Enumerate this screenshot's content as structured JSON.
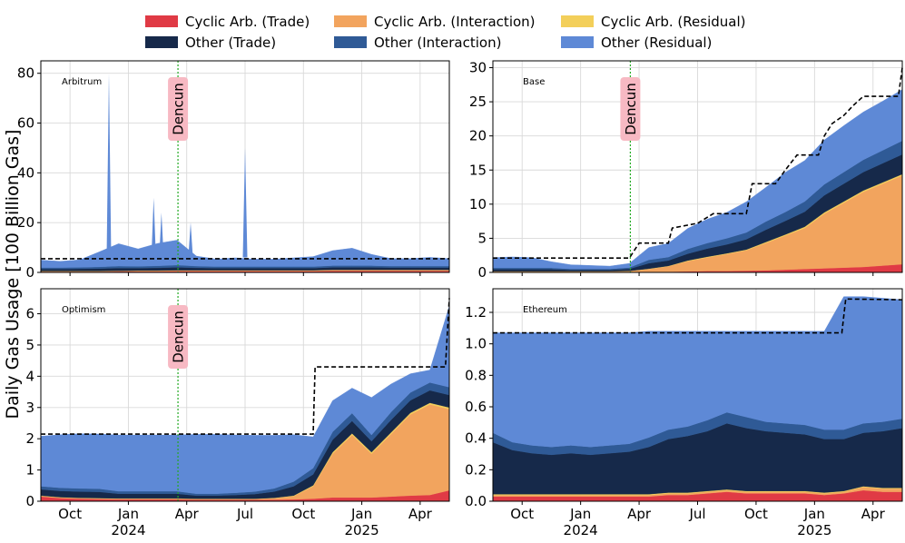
{
  "figure": {
    "ylabel": "Daily Gas Usage [100 Billion Gas]",
    "legend": {
      "placement": "top-center",
      "entries": [
        {
          "label": "Cyclic Arb. (Trade)",
          "color": "#e03a45"
        },
        {
          "label": "Cyclic Arb. (Interaction)",
          "color": "#f2a45e"
        },
        {
          "label": "Cyclic Arb. (Residual)",
          "color": "#f3cf5a"
        },
        {
          "label": "Other (Trade)",
          "color": "#16294a"
        },
        {
          "label": "Other (Interaction)",
          "color": "#2f5a96"
        },
        {
          "label": "Other (Residual)",
          "color": "#5e89d6"
        }
      ]
    },
    "x_tick_labels": [
      "Oct",
      "Jan\n2024",
      "Apr",
      "Jul",
      "Oct",
      "Jan\n2025",
      "Apr"
    ],
    "event_label": "Dencun"
  },
  "chart_data": [
    {
      "type": "area",
      "stacked": true,
      "title": "Arbitrum",
      "x": [
        0,
        1,
        2,
        3,
        4,
        5,
        6,
        7,
        8,
        9,
        10,
        11,
        12,
        13,
        14,
        15,
        16,
        17,
        18,
        19,
        20,
        21
      ],
      "x_dates": [
        "2023-08-15",
        "2023-09-15",
        "2023-10-15",
        "2023-11-15",
        "2023-12-15",
        "2024-01-15",
        "2024-02-15",
        "2024-03-15",
        "2024-04-15",
        "2024-05-15",
        "2024-06-15",
        "2024-07-15",
        "2024-08-15",
        "2024-09-15",
        "2024-10-15",
        "2024-11-15",
        "2024-12-15",
        "2025-01-15",
        "2025-02-15",
        "2025-03-15",
        "2025-04-15",
        "2025-05-15"
      ],
      "ylim": [
        0,
        85
      ],
      "yticks": [
        0,
        20,
        40,
        60,
        80
      ],
      "series": [
        {
          "name": "Cyclic Arb. (Trade)",
          "values": [
            0.3,
            0.3,
            0.3,
            0.3,
            0.4,
            0.4,
            0.4,
            0.5,
            0.5,
            0.5,
            0.5,
            0.5,
            0.5,
            0.5,
            0.5,
            0.6,
            0.6,
            0.6,
            0.6,
            0.6,
            0.6,
            0.6
          ]
        },
        {
          "name": "Cyclic Arb. (Interaction)",
          "values": [
            0.2,
            0.2,
            0.2,
            0.2,
            0.2,
            0.3,
            0.3,
            0.3,
            0.3,
            0.3,
            0.3,
            0.3,
            0.3,
            0.3,
            0.3,
            0.4,
            0.4,
            0.4,
            0.4,
            0.4,
            0.4,
            0.4
          ]
        },
        {
          "name": "Cyclic Arb. (Residual)",
          "values": [
            0.05,
            0.05,
            0.05,
            0.05,
            0.05,
            0.05,
            0.05,
            0.05,
            0.05,
            0.05,
            0.05,
            0.05,
            0.05,
            0.05,
            0.05,
            0.05,
            0.05,
            0.05,
            0.05,
            0.05,
            0.05,
            0.05
          ]
        },
        {
          "name": "Other (Trade)",
          "values": [
            0.8,
            0.8,
            0.9,
            1.0,
            1.1,
            1.0,
            1.1,
            1.2,
            1.0,
            0.9,
            0.9,
            0.9,
            0.9,
            0.9,
            0.9,
            1.0,
            1.0,
            1.0,
            0.9,
            0.9,
            0.9,
            0.9
          ]
        },
        {
          "name": "Other (Interaction)",
          "values": [
            0.6,
            0.6,
            0.6,
            0.7,
            0.8,
            0.7,
            0.8,
            0.9,
            0.7,
            0.6,
            0.6,
            0.6,
            0.6,
            0.6,
            0.6,
            0.7,
            0.7,
            0.7,
            0.6,
            0.6,
            0.6,
            0.6
          ]
        },
        {
          "name": "Other (Residual)",
          "values": [
            3.0,
            2.5,
            3.0,
            6.0,
            9.0,
            7.0,
            9.0,
            10.0,
            4.0,
            3.0,
            3.5,
            3.0,
            3.0,
            3.5,
            4.0,
            6.0,
            7.0,
            4.5,
            3.0,
            3.0,
            3.5,
            3.0
          ]
        }
      ],
      "capacity": [
        [
          0,
          5.5
        ],
        [
          21,
          5.5
        ]
      ],
      "spikes": [
        {
          "x": 3.5,
          "y": 80
        },
        {
          "x": 5.8,
          "y": 30
        },
        {
          "x": 6.2,
          "y": 24
        },
        {
          "x": 7.7,
          "y": 20
        },
        {
          "x": 10.5,
          "y": 50
        }
      ]
    },
    {
      "type": "area",
      "stacked": true,
      "title": "Base",
      "x": [
        0,
        1,
        2,
        3,
        4,
        5,
        6,
        7,
        8,
        9,
        10,
        11,
        12,
        13,
        14,
        15,
        16,
        17,
        18,
        19,
        20,
        21
      ],
      "x_dates": [
        "2023-08-15",
        "2023-09-15",
        "2023-10-15",
        "2023-11-15",
        "2023-12-15",
        "2024-01-15",
        "2024-02-15",
        "2024-03-15",
        "2024-04-15",
        "2024-05-15",
        "2024-06-15",
        "2024-07-15",
        "2024-08-15",
        "2024-09-15",
        "2024-10-15",
        "2024-11-15",
        "2024-12-15",
        "2025-01-15",
        "2025-02-15",
        "2025-03-15",
        "2025-04-15",
        "2025-05-15"
      ],
      "ylim": [
        0,
        31
      ],
      "yticks": [
        0,
        5,
        10,
        15,
        20,
        25,
        30
      ],
      "series": [
        {
          "name": "Cyclic Arb. (Trade)",
          "values": [
            0.05,
            0.05,
            0.05,
            0.05,
            0.05,
            0.05,
            0.05,
            0.05,
            0.1,
            0.1,
            0.15,
            0.2,
            0.2,
            0.25,
            0.3,
            0.4,
            0.5,
            0.6,
            0.7,
            0.8,
            1.0,
            1.2
          ]
        },
        {
          "name": "Cyclic Arb. (Interaction)",
          "values": [
            0.1,
            0.1,
            0.1,
            0.1,
            0.1,
            0.1,
            0.1,
            0.15,
            0.4,
            0.8,
            1.5,
            2.0,
            2.5,
            3.0,
            4.0,
            5.0,
            6.0,
            8.0,
            9.5,
            11.0,
            12.0,
            13.0
          ]
        },
        {
          "name": "Cyclic Arb. (Residual)",
          "values": [
            0.02,
            0.02,
            0.02,
            0.02,
            0.02,
            0.02,
            0.02,
            0.02,
            0.05,
            0.05,
            0.1,
            0.1,
            0.1,
            0.1,
            0.15,
            0.15,
            0.2,
            0.2,
            0.2,
            0.2,
            0.2,
            0.2
          ]
        },
        {
          "name": "Other (Trade)",
          "values": [
            0.3,
            0.3,
            0.3,
            0.3,
            0.2,
            0.2,
            0.2,
            0.3,
            0.8,
            0.8,
            1.0,
            1.2,
            1.3,
            1.5,
            1.8,
            2.0,
            2.2,
            2.5,
            2.6,
            2.7,
            2.8,
            2.9
          ]
        },
        {
          "name": "Other (Interaction)",
          "values": [
            0.2,
            0.2,
            0.2,
            0.2,
            0.15,
            0.15,
            0.15,
            0.2,
            0.5,
            0.5,
            0.7,
            0.8,
            0.9,
            1.0,
            1.2,
            1.3,
            1.5,
            1.6,
            1.7,
            1.8,
            1.9,
            2.0
          ]
        },
        {
          "name": "Other (Residual)",
          "values": [
            1.5,
            1.6,
            1.5,
            0.9,
            0.6,
            0.5,
            0.4,
            0.6,
            1.8,
            2.0,
            3.0,
            3.5,
            3.8,
            4.5,
            5.0,
            5.8,
            6.0,
            6.5,
            6.8,
            7.0,
            7.2,
            7.5
          ]
        }
      ],
      "capacity": [
        [
          0,
          2.1
        ],
        [
          7,
          2.1
        ],
        [
          7.5,
          4.3
        ],
        [
          9,
          4.3
        ],
        [
          9.2,
          6.5
        ],
        [
          10.5,
          7.2
        ],
        [
          11.3,
          8.6
        ],
        [
          13,
          8.6
        ],
        [
          13.3,
          13.0
        ],
        [
          14.5,
          13.0
        ],
        [
          15,
          15.0
        ],
        [
          15.6,
          17.2
        ],
        [
          16.7,
          17.2
        ],
        [
          17,
          20.0
        ],
        [
          17.4,
          21.8
        ],
        [
          18,
          23.0
        ],
        [
          18.5,
          24.5
        ],
        [
          19,
          25.8
        ],
        [
          20.8,
          25.8
        ],
        [
          21,
          30.0
        ]
      ]
    },
    {
      "type": "area",
      "stacked": true,
      "title": "Optimism",
      "x": [
        0,
        1,
        2,
        3,
        4,
        5,
        6,
        7,
        8,
        9,
        10,
        11,
        12,
        13,
        14,
        15,
        16,
        17,
        18,
        19,
        20,
        21
      ],
      "x_dates": [
        "2023-08-15",
        "2023-09-15",
        "2023-10-15",
        "2023-11-15",
        "2023-12-15",
        "2024-01-15",
        "2024-02-15",
        "2024-03-15",
        "2024-04-15",
        "2024-05-15",
        "2024-06-15",
        "2024-07-15",
        "2024-08-15",
        "2024-09-15",
        "2024-10-15",
        "2024-11-15",
        "2024-12-15",
        "2025-01-15",
        "2025-02-15",
        "2025-03-15",
        "2025-04-15",
        "2025-05-15"
      ],
      "ylim": [
        0,
        6.8
      ],
      "yticks": [
        0,
        1,
        2,
        3,
        4,
        5,
        6
      ],
      "series": [
        {
          "name": "Cyclic Arb. (Trade)",
          "values": [
            0.15,
            0.1,
            0.08,
            0.07,
            0.06,
            0.06,
            0.06,
            0.06,
            0.05,
            0.05,
            0.05,
            0.05,
            0.05,
            0.06,
            0.08,
            0.12,
            0.12,
            0.12,
            0.15,
            0.18,
            0.2,
            0.35
          ]
        },
        {
          "name": "Cyclic Arb. (Interaction)",
          "values": [
            0.02,
            0.02,
            0.02,
            0.02,
            0.02,
            0.02,
            0.02,
            0.02,
            0.02,
            0.02,
            0.02,
            0.02,
            0.05,
            0.1,
            0.4,
            1.4,
            2.0,
            1.4,
            2.0,
            2.6,
            2.9,
            2.6
          ]
        },
        {
          "name": "Cyclic Arb. (Residual)",
          "values": [
            0.01,
            0.01,
            0.01,
            0.01,
            0.01,
            0.01,
            0.01,
            0.01,
            0.01,
            0.01,
            0.01,
            0.01,
            0.01,
            0.02,
            0.03,
            0.05,
            0.05,
            0.05,
            0.05,
            0.05,
            0.05,
            0.05
          ]
        },
        {
          "name": "Other (Trade)",
          "values": [
            0.2,
            0.2,
            0.2,
            0.2,
            0.15,
            0.15,
            0.15,
            0.15,
            0.1,
            0.1,
            0.12,
            0.15,
            0.2,
            0.3,
            0.35,
            0.4,
            0.4,
            0.35,
            0.4,
            0.4,
            0.4,
            0.4
          ]
        },
        {
          "name": "Other (Interaction)",
          "values": [
            0.1,
            0.1,
            0.1,
            0.1,
            0.08,
            0.08,
            0.08,
            0.08,
            0.06,
            0.06,
            0.07,
            0.08,
            0.1,
            0.15,
            0.2,
            0.25,
            0.25,
            0.2,
            0.25,
            0.25,
            0.25,
            0.25
          ]
        },
        {
          "name": "Other (Residual)",
          "values": [
            1.6,
            1.7,
            1.75,
            1.75,
            1.8,
            1.8,
            1.8,
            1.8,
            1.9,
            1.9,
            1.85,
            1.8,
            1.7,
            1.5,
            1.0,
            1.0,
            0.8,
            1.2,
            0.9,
            0.6,
            0.4,
            2.6
          ]
        }
      ],
      "capacity": [
        [
          0,
          2.15
        ],
        [
          14,
          2.15
        ],
        [
          14.1,
          4.3
        ],
        [
          20.8,
          4.3
        ],
        [
          21,
          6.5
        ]
      ]
    },
    {
      "type": "area",
      "stacked": true,
      "title": "Ethereum",
      "x": [
        0,
        1,
        2,
        3,
        4,
        5,
        6,
        7,
        8,
        9,
        10,
        11,
        12,
        13,
        14,
        15,
        16,
        17,
        18,
        19,
        20,
        21
      ],
      "x_dates": [
        "2023-08-15",
        "2023-09-15",
        "2023-10-15",
        "2023-11-15",
        "2023-12-15",
        "2024-01-15",
        "2024-02-15",
        "2024-03-15",
        "2024-04-15",
        "2024-05-15",
        "2024-06-15",
        "2024-07-15",
        "2024-08-15",
        "2024-09-15",
        "2024-10-15",
        "2024-11-15",
        "2024-12-15",
        "2025-01-15",
        "2025-02-15",
        "2025-03-15",
        "2025-04-15",
        "2025-05-15"
      ],
      "ylim": [
        0,
        1.35
      ],
      "yticks": [
        0.0,
        0.2,
        0.4,
        0.6,
        0.8,
        1.0,
        1.2
      ],
      "series": [
        {
          "name": "Cyclic Arb. (Trade)",
          "values": [
            0.03,
            0.03,
            0.03,
            0.03,
            0.03,
            0.03,
            0.03,
            0.03,
            0.03,
            0.04,
            0.04,
            0.05,
            0.06,
            0.05,
            0.05,
            0.05,
            0.05,
            0.04,
            0.05,
            0.07,
            0.06,
            0.06
          ]
        },
        {
          "name": "Cyclic Arb. (Interaction)",
          "values": [
            0.01,
            0.01,
            0.01,
            0.01,
            0.01,
            0.01,
            0.01,
            0.01,
            0.01,
            0.01,
            0.01,
            0.01,
            0.01,
            0.01,
            0.01,
            0.01,
            0.01,
            0.01,
            0.01,
            0.02,
            0.02,
            0.02
          ]
        },
        {
          "name": "Cyclic Arb. (Residual)",
          "values": [
            0.005,
            0.005,
            0.005,
            0.005,
            0.005,
            0.005,
            0.005,
            0.005,
            0.005,
            0.005,
            0.005,
            0.005,
            0.005,
            0.005,
            0.005,
            0.005,
            0.005,
            0.005,
            0.005,
            0.005,
            0.005,
            0.005
          ]
        },
        {
          "name": "Other (Trade)",
          "values": [
            0.33,
            0.28,
            0.26,
            0.25,
            0.26,
            0.25,
            0.26,
            0.27,
            0.3,
            0.34,
            0.36,
            0.38,
            0.42,
            0.4,
            0.38,
            0.37,
            0.36,
            0.34,
            0.33,
            0.34,
            0.36,
            0.38
          ]
        },
        {
          "name": "Other (Interaction)",
          "values": [
            0.06,
            0.05,
            0.05,
            0.05,
            0.05,
            0.05,
            0.05,
            0.05,
            0.06,
            0.06,
            0.06,
            0.07,
            0.07,
            0.07,
            0.06,
            0.06,
            0.06,
            0.06,
            0.06,
            0.06,
            0.06,
            0.06
          ]
        },
        {
          "name": "Other (Residual)",
          "values": [
            0.635,
            0.695,
            0.715,
            0.725,
            0.715,
            0.725,
            0.715,
            0.705,
            0.675,
            0.625,
            0.605,
            0.565,
            0.515,
            0.545,
            0.575,
            0.585,
            0.595,
            0.625,
            0.845,
            0.805,
            0.785,
            0.755
          ]
        }
      ],
      "capacity": [
        [
          0,
          1.07
        ],
        [
          17.9,
          1.07
        ],
        [
          18.1,
          1.285
        ],
        [
          21,
          1.28
        ]
      ]
    }
  ]
}
